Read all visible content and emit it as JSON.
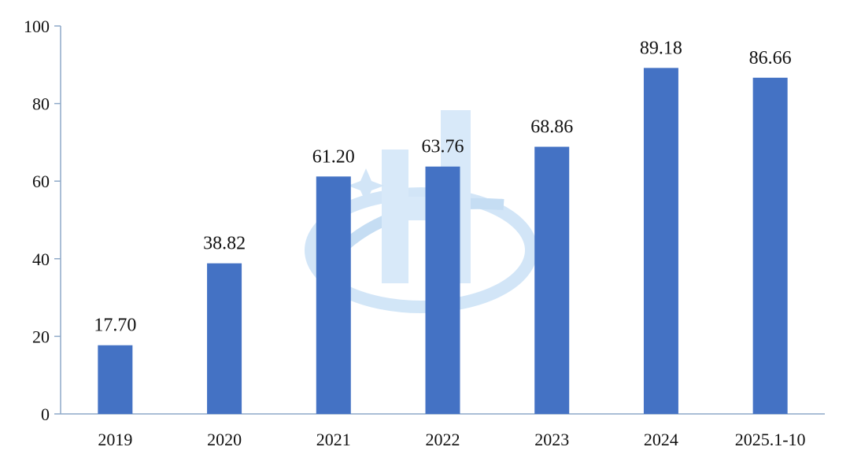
{
  "chart_data": {
    "type": "bar",
    "categories": [
      "2019",
      "2020",
      "2021",
      "2022",
      "2023",
      "2024",
      "2025.1-10"
    ],
    "values": [
      17.7,
      38.82,
      61.2,
      63.76,
      68.86,
      89.18,
      86.66
    ],
    "data_labels": [
      "17.70",
      "38.82",
      "61.20",
      "63.76",
      "68.86",
      "89.18",
      "86.66"
    ],
    "title": "",
    "xlabel": "",
    "ylabel": "",
    "ylim": [
      0,
      100
    ],
    "yticks": [
      0,
      20,
      40,
      60,
      80,
      100
    ],
    "grid": false,
    "bar_color": "#4472C4",
    "axis_color": "#8EA9C8"
  }
}
